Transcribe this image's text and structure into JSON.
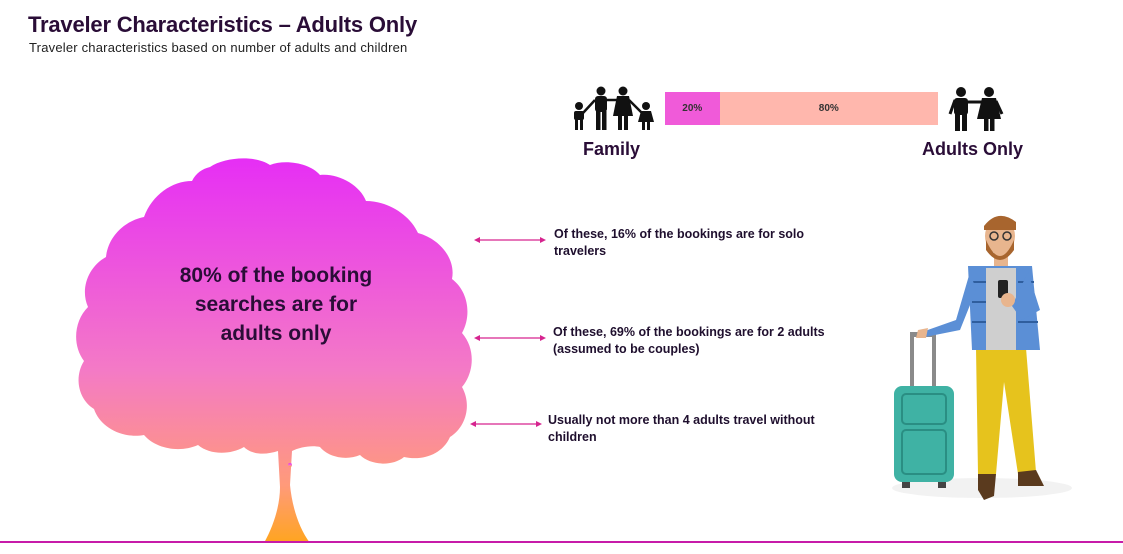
{
  "header": {
    "title": "Traveler Characteristics – Adults Only",
    "subtitle": "Traveler characteristics based on number of adults and children"
  },
  "split_bar": {
    "family_label": "Family",
    "adults_label": "Adults Only",
    "family_pct": 20,
    "adults_pct": 80,
    "family_text": "20%",
    "adults_text": "80%",
    "family_color": "#f05ad9",
    "adults_color": "#ffb7ad"
  },
  "tree": {
    "statement": "80% of the booking searches are for adults only",
    "gradient_top": "#e62ef5",
    "gradient_bottom": "#ffa51f"
  },
  "notes": [
    "Of these, 16% of the bookings are for solo travelers",
    "Of these, 69% of the bookings are for 2 adults (assumed to be couples)",
    "Usually not more than 4 adults travel without children"
  ],
  "colors": {
    "title": "#2a0d37",
    "arrow": "#d6248f",
    "bottom_rule": "#c71ba9"
  }
}
